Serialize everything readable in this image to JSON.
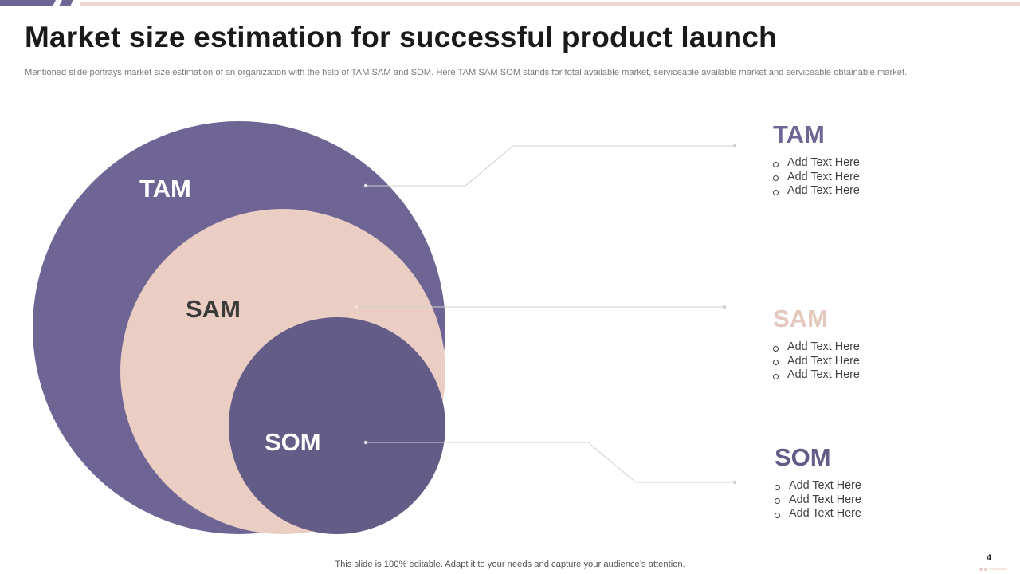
{
  "slide": {
    "title": "Market size estimation for successful product launch",
    "subtitle": "Mentioned slide portrays market size estimation of an organization with the help of TAM  SAM  and SOM.  Here TAM  SAM  SOM  stands for total available market, serviceable available market and serviceable obtainable market.",
    "footer": "This slide is 100% editable. Adapt it to your needs and capture your audience’s attention.",
    "page_number": "4"
  },
  "colors": {
    "tam": "#6e6594",
    "sam": "#eacdc3",
    "som": "#635c87",
    "sam_heading": "#e4c8bd",
    "accent_bar": "#6e6594",
    "connector": "#cfcfcf"
  },
  "diagram": {
    "tam_label": "TAM",
    "sam_label": "SAM",
    "som_label": "SOM"
  },
  "details": {
    "tam": {
      "heading": "TAM",
      "items": [
        "Add Text Here",
        "Add Text Here",
        "Add Text Here"
      ]
    },
    "sam": {
      "heading": "SAM",
      "items": [
        "Add Text Here",
        "Add Text Here",
        "Add Text Here"
      ]
    },
    "som": {
      "heading": "SOM",
      "items": [
        "Add Text Here",
        "Add Text Here",
        "Add Text Here"
      ]
    }
  }
}
